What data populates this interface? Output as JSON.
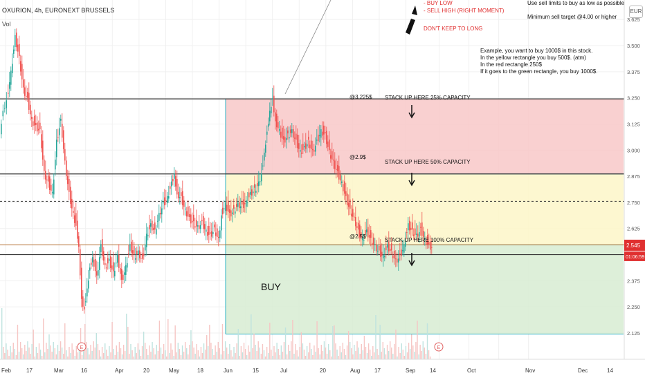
{
  "header": {
    "title": "OXURION, 4h, EURONEXT BRUSSELS",
    "vol_label": "Vol",
    "currency": "EUR"
  },
  "notes": {
    "buy_low": "- BUY LOW",
    "sell_high": "- SELL HIGH (RIGHT MOMENT)",
    "dont_keep": "DON'T KEEP TO LONG",
    "use_limits": "Use sell limits to buy as low as possible",
    "min_target": "Minimum sell target @4.00 or higher",
    "example_lines": [
      "Example, you want to buy 1000$ in this stock.",
      "In the yellow rectangle you buy 500$. (atm)",
      "In the red rectangle 250$",
      "If it goes to the green rectangle, you buy 1000$."
    ]
  },
  "zones": {
    "at1": "@3.225$",
    "stack1": "STACK UP HERE 25% CAPACITY",
    "at2": "@2.9$",
    "stack2": "STACK UP HERE 50% CAPACITY",
    "at3": "@2.5$",
    "stack3": "STACK UP HERE 100% CAPACITY",
    "buy": "BUY"
  },
  "price_badges": {
    "last": "2.545",
    "countdown": "01:06:59"
  },
  "colors": {
    "red_zone": "#f8c8c8",
    "yellow_zone": "#fdf6c8",
    "green_zone": "#d7ecd2",
    "zone_border": "#2bb0c4",
    "up": "#26a69a",
    "down": "#ef5350",
    "badge": "#e03030"
  },
  "chart_data": {
    "type": "candlestick",
    "title": "OXURION, 4h, EURONEXT BRUSSELS",
    "y_ticks": [
      "3.625",
      "3.500",
      "3.375",
      "3.250",
      "3.125",
      "3.000",
      "2.875",
      "2.750",
      "2.625",
      "2.500",
      "2.375",
      "2.250",
      "2.125"
    ],
    "x_ticks": [
      "Feb",
      "17",
      "Mar",
      "16",
      "Apr",
      "20",
      "May",
      "18",
      "Jun",
      "15",
      "Jul",
      "20",
      "Aug",
      "17",
      "Sep",
      "14",
      "Oct",
      "Nov",
      "Dec",
      "14"
    ],
    "ylim": [
      2.08,
      3.66
    ],
    "horizontal_levels": [
      3.245,
      2.886,
      2.755,
      2.547,
      2.5
    ],
    "rectangles": [
      {
        "name": "red",
        "y_top": 3.245,
        "y_bottom": 2.886
      },
      {
        "name": "yellow",
        "y_top": 2.886,
        "y_bottom": 2.547
      },
      {
        "name": "green",
        "y_top": 2.547,
        "y_bottom": 2.12
      }
    ],
    "close_path": [
      [
        0,
        3.1
      ],
      [
        5,
        3.2
      ],
      [
        10,
        3.25
      ],
      [
        16,
        3.38
      ],
      [
        22,
        3.55
      ],
      [
        28,
        3.45
      ],
      [
        34,
        3.3
      ],
      [
        40,
        3.25
      ],
      [
        46,
        3.15
      ],
      [
        52,
        3.12
      ],
      [
        58,
        3.1
      ],
      [
        64,
        2.9
      ],
      [
        70,
        2.85
      ],
      [
        76,
        2.8
      ],
      [
        82,
        3.05
      ],
      [
        88,
        3.15
      ],
      [
        94,
        2.95
      ],
      [
        100,
        2.8
      ],
      [
        106,
        2.7
      ],
      [
        110,
        2.65
      ],
      [
        114,
        2.55
      ],
      [
        118,
        2.3
      ],
      [
        122,
        2.25
      ],
      [
        126,
        2.35
      ],
      [
        130,
        2.45
      ],
      [
        134,
        2.5
      ],
      [
        140,
        2.4
      ],
      [
        146,
        2.55
      ],
      [
        152,
        2.45
      ],
      [
        158,
        2.48
      ],
      [
        164,
        2.42
      ],
      [
        170,
        2.5
      ],
      [
        176,
        2.38
      ],
      [
        182,
        2.45
      ],
      [
        188,
        2.55
      ],
      [
        194,
        2.5
      ],
      [
        200,
        2.52
      ],
      [
        206,
        2.48
      ],
      [
        212,
        2.6
      ],
      [
        218,
        2.65
      ],
      [
        224,
        2.62
      ],
      [
        230,
        2.7
      ],
      [
        236,
        2.75
      ],
      [
        242,
        2.78
      ],
      [
        248,
        2.85
      ],
      [
        252,
        2.9
      ],
      [
        256,
        2.8
      ],
      [
        262,
        2.78
      ],
      [
        268,
        2.72
      ],
      [
        274,
        2.68
      ],
      [
        280,
        2.66
      ],
      [
        286,
        2.64
      ],
      [
        292,
        2.66
      ],
      [
        298,
        2.62
      ],
      [
        304,
        2.6
      ],
      [
        310,
        2.63
      ],
      [
        316,
        2.58
      ],
      [
        320,
        2.7
      ],
      [
        326,
        2.75
      ],
      [
        332,
        2.7
      ],
      [
        338,
        2.72
      ],
      [
        344,
        2.75
      ],
      [
        350,
        2.74
      ],
      [
        356,
        2.76
      ],
      [
        362,
        2.8
      ],
      [
        368,
        2.82
      ],
      [
        374,
        2.85
      ],
      [
        378,
        2.9
      ],
      [
        382,
        3.0
      ],
      [
        386,
        3.1
      ],
      [
        390,
        3.2
      ],
      [
        394,
        3.26
      ],
      [
        398,
        3.15
      ],
      [
        404,
        3.1
      ],
      [
        410,
        3.05
      ],
      [
        416,
        3.08
      ],
      [
        422,
        3.1
      ],
      [
        428,
        3.05
      ],
      [
        434,
        3.0
      ],
      [
        440,
        3.02
      ],
      [
        446,
        3.05
      ],
      [
        452,
        3.0
      ],
      [
        458,
        3.05
      ],
      [
        464,
        3.1
      ],
      [
        470,
        3.08
      ],
      [
        476,
        3.0
      ],
      [
        482,
        2.95
      ],
      [
        488,
        2.9
      ],
      [
        494,
        2.85
      ],
      [
        500,
        2.78
      ],
      [
        506,
        2.72
      ],
      [
        512,
        2.68
      ],
      [
        518,
        2.62
      ],
      [
        524,
        2.58
      ],
      [
        530,
        2.62
      ],
      [
        536,
        2.58
      ],
      [
        542,
        2.55
      ],
      [
        548,
        2.52
      ],
      [
        554,
        2.5
      ],
      [
        560,
        2.55
      ],
      [
        566,
        2.52
      ],
      [
        572,
        2.48
      ],
      [
        578,
        2.5
      ],
      [
        584,
        2.55
      ],
      [
        590,
        2.65
      ],
      [
        596,
        2.62
      ],
      [
        602,
        2.6
      ],
      [
        608,
        2.63
      ],
      [
        614,
        2.58
      ],
      [
        620,
        2.55
      ],
      [
        624,
        2.545
      ]
    ]
  }
}
